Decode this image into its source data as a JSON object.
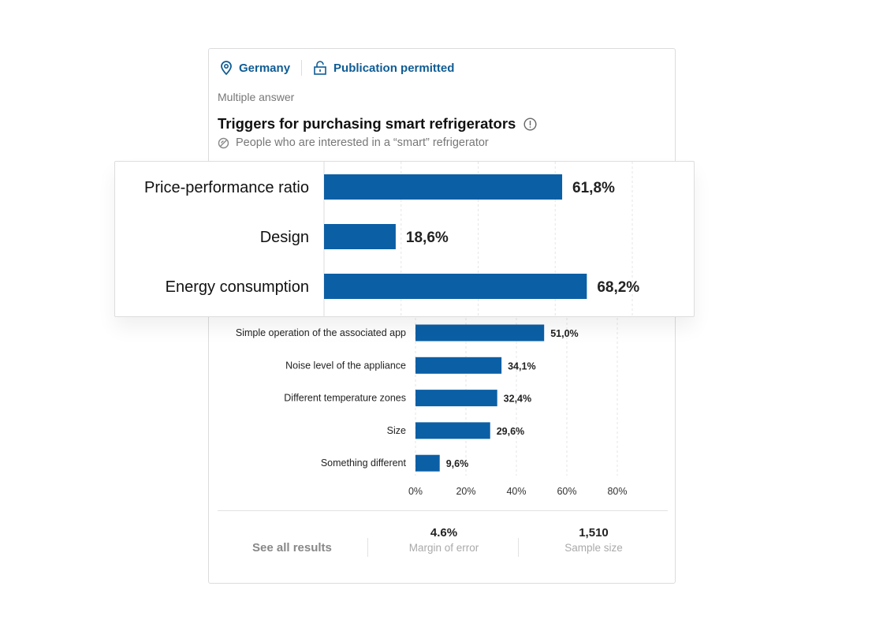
{
  "header": {
    "location": "Germany",
    "publication": "Publication permitted",
    "answer_type": "Multiple answer",
    "title": "Triggers for purchasing smart refrigerators",
    "subtitle": "People who are interested in a “smart” refrigerator",
    "icons": [
      "location-pin-icon",
      "unlock-icon",
      "info-icon",
      "target-group-icon"
    ]
  },
  "footer": {
    "see_all": "See all results",
    "margin_value": "4.6%",
    "margin_label": "Margin of error",
    "sample_value": "1,510",
    "sample_label": "Sample size"
  },
  "colors": {
    "bar": "#0b5fa5",
    "link": "#0f5c94"
  },
  "chart_data": {
    "type": "bar",
    "orientation": "horizontal",
    "categories": [
      "Price-performance ratio",
      "Design",
      "Energy consumption",
      "Simple operation of the associated app",
      "Noise level of the appliance",
      "Different temperature zones",
      "Size",
      "Something different"
    ],
    "values": [
      61.8,
      18.6,
      68.2,
      51.0,
      34.1,
      32.4,
      29.6,
      9.6
    ],
    "value_labels": [
      "61,8%",
      "18,6%",
      "68,2%",
      "51,0%",
      "34,1%",
      "32,4%",
      "29,6%",
      "9,6%"
    ],
    "xlim": [
      0,
      80
    ],
    "xticks": [
      "0%",
      "20%",
      "40%",
      "60%",
      "80%"
    ],
    "grid": true,
    "magnified_categories": 3
  }
}
